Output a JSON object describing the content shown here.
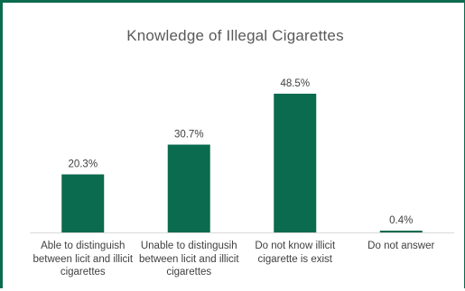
{
  "chart_data": {
    "type": "bar",
    "title": "Knowledge of Illegal Cigarettes",
    "categories": [
      "Able to distinguish between licit and illicit cigarettes",
      "Unable to distingusih between licit and illicit cigarettes",
      "Do not know illicit cigarette is exist",
      "Do not answer"
    ],
    "values": [
      20.3,
      30.7,
      48.5,
      0.4
    ],
    "data_labels": [
      "20.3%",
      "30.7%",
      "48.5%",
      "0.4%"
    ],
    "unit": "%",
    "ylim": [
      0,
      48.5
    ],
    "grid": false,
    "legend": "none",
    "colors": {
      "bar": "#0b6b4e",
      "frame": "#0b6b4e",
      "axis": "#d9d9d9"
    }
  }
}
